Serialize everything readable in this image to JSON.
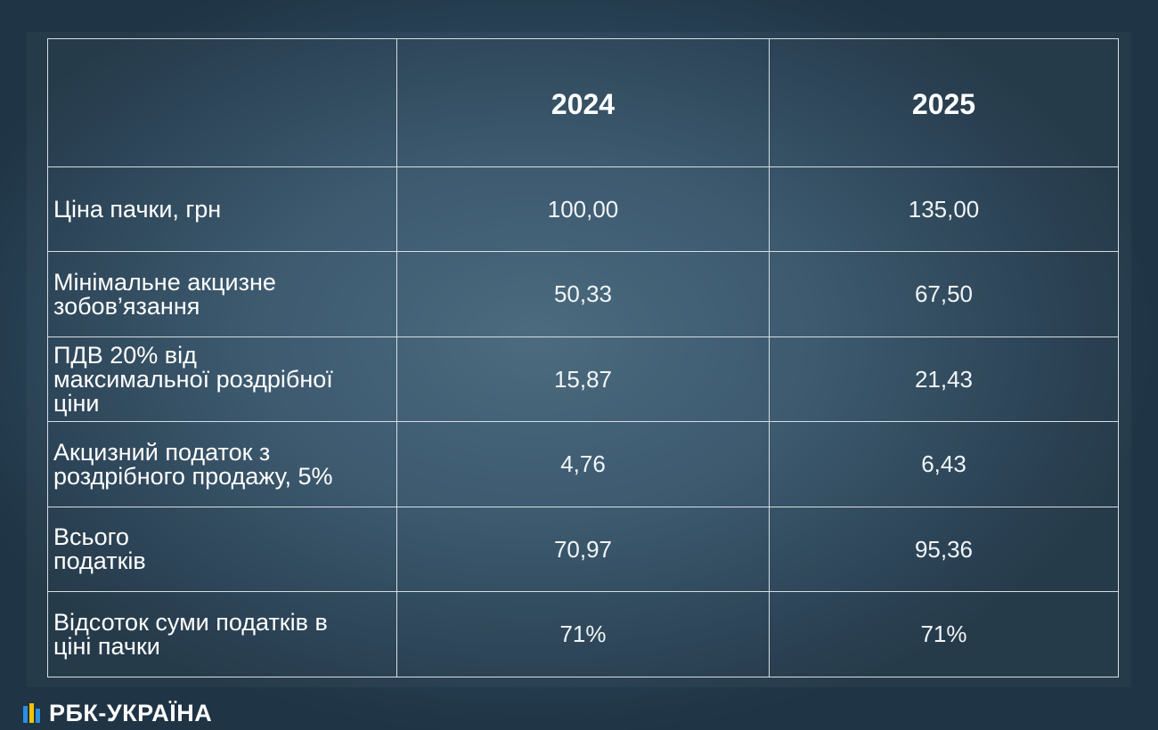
{
  "table": {
    "header": [
      "",
      "2024",
      "2025"
    ],
    "rows": [
      {
        "label_lines": [
          "Ціна пачки, грн"
        ],
        "v2024": "100,00",
        "v2025": "135,00"
      },
      {
        "label_lines": [
          "Мінімальне акцизне",
          "зобов’язання"
        ],
        "v2024": "50,33",
        "v2025": "67,50"
      },
      {
        "label_lines": [
          "ПДВ 20% від",
          "максимальної роздрібної",
          "ціни"
        ],
        "v2024": "15,87",
        "v2025": "21,43"
      },
      {
        "label_lines": [
          "Акцизний податок з",
          "роздрібного продажу, 5%"
        ],
        "v2024": "4,76",
        "v2025": "6,43"
      },
      {
        "label_lines": [
          "Всього",
          "податків"
        ],
        "v2024": "70,97",
        "v2025": "95,36"
      },
      {
        "label_lines": [
          "Відсоток суми податків в",
          "ціні пачки"
        ],
        "v2024": "71%",
        "v2025": "71%"
      }
    ]
  },
  "logo": {
    "text": "РБК-УКРАЇНА",
    "icon": "rbc-bars-icon",
    "colors": {
      "blue": "#2b8fe0",
      "yellow": "#f4c300"
    }
  },
  "colors": {
    "background": "#36546a",
    "grid_line": "#d7dee3",
    "text": "#ffffff"
  }
}
